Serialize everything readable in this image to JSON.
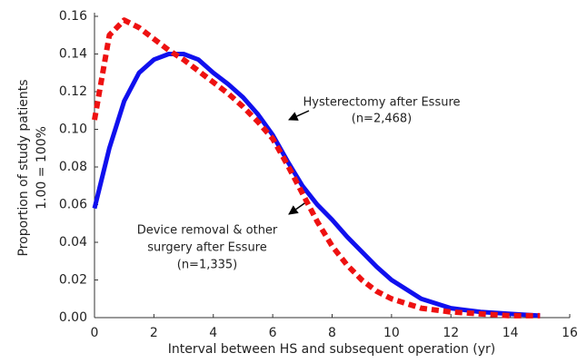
{
  "chart_data": {
    "type": "line",
    "xlabel": "Interval between HS and subsequent operation (yr)",
    "ylabel": [
      "Proportion of study patients",
      "1.00 = 100%"
    ],
    "x": [
      0,
      0.5,
      1,
      1.5,
      2,
      2.5,
      3,
      3.5,
      4,
      4.5,
      5,
      5.5,
      6,
      6.5,
      7,
      7.5,
      8,
      8.5,
      9,
      9.5,
      10,
      11,
      12,
      13,
      14,
      15
    ],
    "series": [
      {
        "name": "Hysterectomy after Essure",
        "color": "#1010ee",
        "dashed": false,
        "values": [
          0.058,
          0.09,
          0.115,
          0.13,
          0.137,
          0.14,
          0.14,
          0.137,
          0.13,
          0.124,
          0.117,
          0.108,
          0.097,
          0.083,
          0.07,
          0.06,
          0.052,
          0.043,
          0.035,
          0.027,
          0.02,
          0.01,
          0.005,
          0.003,
          0.002,
          0.001
        ]
      },
      {
        "name": "Device removal & other surgery after Essure",
        "color": "#ee1111",
        "dashed": true,
        "values": [
          0.105,
          0.15,
          0.158,
          0.154,
          0.148,
          0.142,
          0.137,
          0.131,
          0.125,
          0.119,
          0.112,
          0.104,
          0.095,
          0.081,
          0.066,
          0.051,
          0.038,
          0.028,
          0.02,
          0.014,
          0.01,
          0.005,
          0.003,
          0.002,
          0.001,
          0.001
        ]
      }
    ],
    "annotations": [
      {
        "lines": [
          "Hysterectomy after Essure",
          "(n=2,468)"
        ]
      },
      {
        "lines": [
          "Device removal & other",
          "surgery after Essure",
          "(n=1,335)"
        ]
      }
    ],
    "xlim": [
      0,
      16
    ],
    "xticks": [
      0,
      2,
      4,
      6,
      8,
      10,
      12,
      14,
      16
    ],
    "ylim": [
      0,
      0.16
    ],
    "yticks": [
      {
        "value": 0,
        "label": "0.00"
      },
      {
        "value": 0.02,
        "label": "0.02"
      },
      {
        "value": 0.04,
        "label": "0.04"
      },
      {
        "value": 0.06,
        "label": "0.06"
      },
      {
        "value": 0.08,
        "label": "0.08"
      },
      {
        "value": 0.1,
        "label": "0.10"
      },
      {
        "value": 0.12,
        "label": "0.12"
      },
      {
        "value": 0.14,
        "label": "0.14"
      },
      {
        "value": 0.16,
        "label": "0.16"
      }
    ],
    "grid": false
  }
}
